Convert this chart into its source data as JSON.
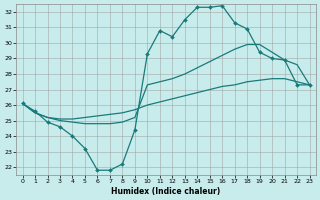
{
  "xlabel": "Humidex (Indice chaleur)",
  "background_color": "#c8ecec",
  "line_color": "#1a7a7a",
  "xlim": [
    -0.5,
    23.5
  ],
  "ylim": [
    21.5,
    32.5
  ],
  "xticks": [
    0,
    1,
    2,
    3,
    4,
    5,
    6,
    7,
    8,
    9,
    10,
    11,
    12,
    13,
    14,
    15,
    16,
    17,
    18,
    19,
    20,
    21,
    22,
    23
  ],
  "yticks": [
    22,
    23,
    24,
    25,
    26,
    27,
    28,
    29,
    30,
    31,
    32
  ],
  "line1_x": [
    0,
    1,
    2,
    3,
    4,
    5,
    6,
    7,
    8,
    9,
    10,
    11,
    12,
    13,
    14,
    15,
    16,
    17,
    18,
    19,
    20,
    21,
    22,
    23
  ],
  "line1_y": [
    26.1,
    25.6,
    24.9,
    24.6,
    24.0,
    23.2,
    21.8,
    21.8,
    22.2,
    24.4,
    29.3,
    30.8,
    30.4,
    31.5,
    32.3,
    32.3,
    32.4,
    31.3,
    30.9,
    29.4,
    29.0,
    28.9,
    27.3,
    27.3
  ],
  "line2_x": [
    0,
    1,
    2,
    3,
    4,
    5,
    6,
    7,
    8,
    9,
    10,
    11,
    12,
    13,
    14,
    15,
    16,
    17,
    18,
    19,
    20,
    21,
    22,
    23
  ],
  "line2_y": [
    26.1,
    25.5,
    25.2,
    25.0,
    24.9,
    24.8,
    24.8,
    24.8,
    24.9,
    25.2,
    27.3,
    27.5,
    27.7,
    28.0,
    28.4,
    28.8,
    29.2,
    29.6,
    29.9,
    29.9,
    29.4,
    28.9,
    28.6,
    27.3
  ],
  "line3_x": [
    0,
    1,
    2,
    3,
    4,
    5,
    6,
    7,
    8,
    9,
    10,
    11,
    12,
    13,
    14,
    15,
    16,
    17,
    18,
    19,
    20,
    21,
    22,
    23
  ],
  "line3_y": [
    26.1,
    25.5,
    25.2,
    25.1,
    25.1,
    25.2,
    25.3,
    25.4,
    25.5,
    25.7,
    26.0,
    26.2,
    26.4,
    26.6,
    26.8,
    27.0,
    27.2,
    27.3,
    27.5,
    27.6,
    27.7,
    27.7,
    27.5,
    27.3
  ],
  "marker_x1": [
    0,
    1,
    2,
    3,
    4,
    5,
    6,
    7,
    8,
    9,
    10,
    11,
    12,
    13,
    14,
    15,
    16,
    17,
    18,
    19,
    20,
    21,
    22,
    23
  ],
  "marker_y1": [
    26.1,
    25.6,
    24.9,
    24.6,
    24.0,
    23.2,
    21.8,
    21.8,
    22.2,
    24.4,
    29.3,
    30.8,
    30.4,
    31.5,
    32.3,
    32.3,
    32.4,
    31.3,
    30.9,
    29.4,
    29.0,
    28.9,
    27.3,
    27.3
  ]
}
